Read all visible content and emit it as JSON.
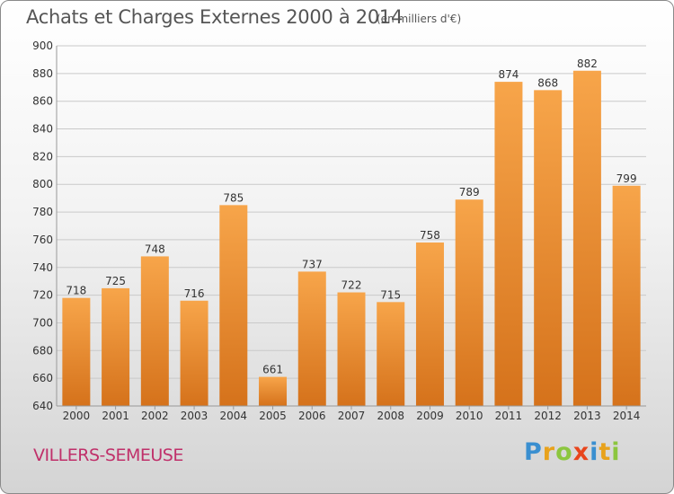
{
  "header": {
    "title": "Achats et Charges Externes 2000 à 2014",
    "subtitle": "(en milliers d'€)"
  },
  "footer": {
    "commune": "VILLERS-SEMEUSE",
    "logo_text": "Proxiti",
    "logo_letters": [
      {
        "char": "P",
        "color": "#3a8fd0"
      },
      {
        "char": "r",
        "color": "#e8a21c"
      },
      {
        "char": "o",
        "color": "#8cc63f"
      },
      {
        "char": "x",
        "color": "#e8451c"
      },
      {
        "char": "i",
        "color": "#3a8fd0"
      },
      {
        "char": "t",
        "color": "#e8a21c"
      },
      {
        "char": "i",
        "color": "#8cc63f"
      }
    ]
  },
  "colors": {
    "bar_top": "#f7a54a",
    "bar_bottom": "#d5721b",
    "grid": "#c9c9c9",
    "axis_text": "#333333",
    "commune": "#c0306a"
  },
  "chart_data": {
    "type": "bar",
    "categories": [
      "2000",
      "2001",
      "2002",
      "2003",
      "2004",
      "2005",
      "2006",
      "2007",
      "2008",
      "2009",
      "2010",
      "2011",
      "2012",
      "2013",
      "2014"
    ],
    "values": [
      718,
      725,
      748,
      716,
      785,
      661,
      737,
      722,
      715,
      758,
      789,
      874,
      868,
      882,
      799
    ],
    "title": "Achats et Charges Externes 2000 à 2014",
    "ylim": [
      640,
      900
    ],
    "yticks": [
      640,
      660,
      680,
      700,
      720,
      740,
      760,
      780,
      800,
      820,
      840,
      860,
      880,
      900
    ],
    "grid": true,
    "data_labels": true
  }
}
